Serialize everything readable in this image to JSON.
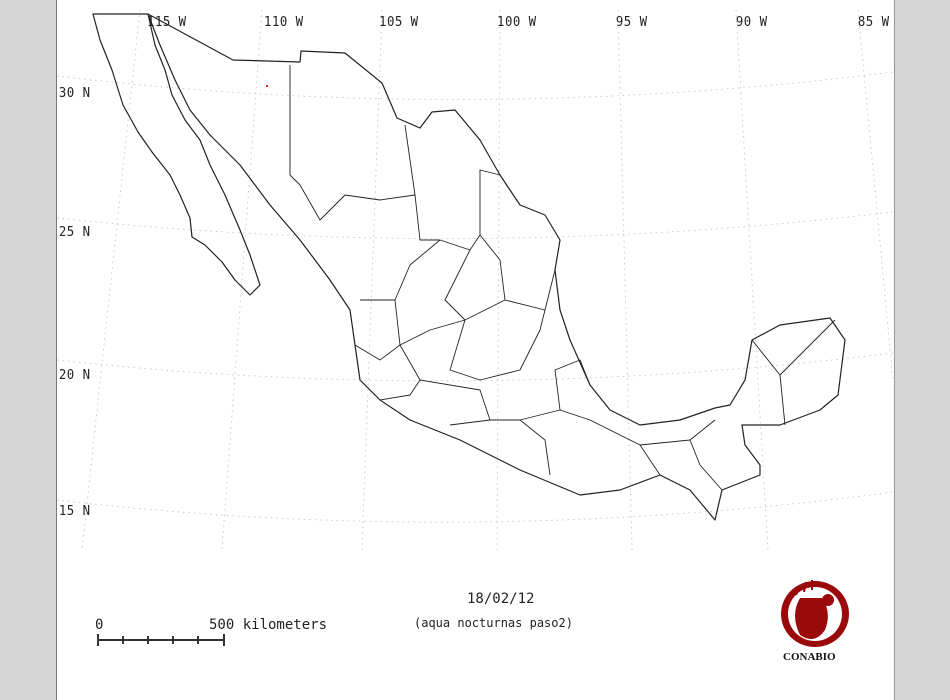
{
  "map": {
    "longitude_labels": [
      "115 W",
      "110 W",
      "105 W",
      "100 W",
      "95 W",
      "90 W",
      "85 W"
    ],
    "latitude_labels": [
      "30 N",
      "25 N",
      "20 N",
      "15 N"
    ],
    "date": "18/02/12",
    "subtitle": "(aqua nocturnas paso2)",
    "scale_bar": {
      "start_label": "0",
      "end_label": "500 kilometers",
      "divisions": 5
    },
    "logo": {
      "text": "CONABIO",
      "color": "#9b0a0a"
    },
    "outline_color": "#222222",
    "graticule_color": "#c8c8c8",
    "hotspot_color": "#e02020"
  }
}
